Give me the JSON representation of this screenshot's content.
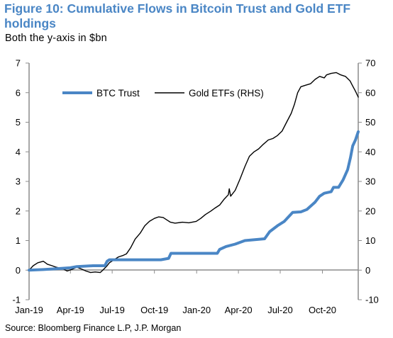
{
  "title": "Figure 10: Cumulative Flows in Bitcoin Trust and Gold ETF holdings",
  "subtitle": "Both the y-axis in $bn",
  "source": "Source: Bloomberg Finance L.P, J.P. Morgan",
  "chart_data": {
    "type": "line",
    "title": "Figure 10: Cumulative Flows in Bitcoin Trust and Gold ETF holdings",
    "subtitle": "Both the y-axis in $bn",
    "x_ticks": [
      "Jan-19",
      "Apr-19",
      "Jul-19",
      "Oct-19",
      "Jan-20",
      "Apr-20",
      "Jul-20",
      "Oct-20"
    ],
    "x_range": [
      "2019-01-01",
      "2020-12-18"
    ],
    "y_left": {
      "min": -1,
      "max": 7,
      "ticks": [
        -1,
        0,
        1,
        2,
        3,
        4,
        5,
        6,
        7
      ]
    },
    "y_right": {
      "min": -10,
      "max": 70,
      "ticks": [
        -10,
        0,
        10,
        20,
        30,
        40,
        50,
        60,
        70
      ]
    },
    "legend_position": "top-right",
    "grid": false,
    "series": [
      {
        "name": "BTC Trust",
        "axis": "left",
        "color": "#4A86C5",
        "points": [
          [
            "2019-01-01",
            0.0
          ],
          [
            "2019-02-01",
            0.02
          ],
          [
            "2019-03-01",
            0.05
          ],
          [
            "2019-04-01",
            0.08
          ],
          [
            "2019-04-15",
            0.12
          ],
          [
            "2019-05-20",
            0.15
          ],
          [
            "2019-06-15",
            0.15
          ],
          [
            "2019-06-20",
            0.3
          ],
          [
            "2019-06-25",
            0.35
          ],
          [
            "2019-07-20",
            0.35
          ],
          [
            "2019-08-15",
            0.35
          ],
          [
            "2019-09-15",
            0.35
          ],
          [
            "2019-10-15",
            0.35
          ],
          [
            "2019-11-01",
            0.4
          ],
          [
            "2019-11-06",
            0.57
          ],
          [
            "2019-12-15",
            0.57
          ],
          [
            "2020-01-15",
            0.57
          ],
          [
            "2020-02-15",
            0.57
          ],
          [
            "2020-02-20",
            0.7
          ],
          [
            "2020-03-05",
            0.8
          ],
          [
            "2020-03-25",
            0.88
          ],
          [
            "2020-04-15",
            1.0
          ],
          [
            "2020-05-15",
            1.04
          ],
          [
            "2020-05-28",
            1.06
          ],
          [
            "2020-06-08",
            1.3
          ],
          [
            "2020-06-25",
            1.5
          ],
          [
            "2020-07-10",
            1.65
          ],
          [
            "2020-07-22",
            1.85
          ],
          [
            "2020-07-28",
            1.95
          ],
          [
            "2020-08-15",
            1.97
          ],
          [
            "2020-08-28",
            2.05
          ],
          [
            "2020-09-15",
            2.3
          ],
          [
            "2020-09-25",
            2.5
          ],
          [
            "2020-10-05",
            2.6
          ],
          [
            "2020-10-20",
            2.65
          ],
          [
            "2020-10-25",
            2.8
          ],
          [
            "2020-11-05",
            2.8
          ],
          [
            "2020-11-15",
            3.05
          ],
          [
            "2020-11-25",
            3.4
          ],
          [
            "2020-12-01",
            3.8
          ],
          [
            "2020-12-06",
            4.2
          ],
          [
            "2020-12-12",
            4.4
          ],
          [
            "2020-12-18",
            4.68
          ]
        ]
      },
      {
        "name": "Gold ETFs (RHS)",
        "axis": "right",
        "color": "#000000",
        "points": [
          [
            "2019-01-01",
            0.0
          ],
          [
            "2019-01-10",
            1.5
          ],
          [
            "2019-01-20",
            2.5
          ],
          [
            "2019-02-01",
            3.0
          ],
          [
            "2019-02-10",
            2.0
          ],
          [
            "2019-02-20",
            1.5
          ],
          [
            "2019-03-01",
            1.0
          ],
          [
            "2019-03-15",
            0.5
          ],
          [
            "2019-03-25",
            -0.3
          ],
          [
            "2019-04-05",
            0.3
          ],
          [
            "2019-04-15",
            1.0
          ],
          [
            "2019-04-25",
            0.4
          ],
          [
            "2019-05-05",
            -0.3
          ],
          [
            "2019-05-15",
            -0.8
          ],
          [
            "2019-05-25",
            -0.6
          ],
          [
            "2019-06-05",
            -0.8
          ],
          [
            "2019-06-12",
            0.2
          ],
          [
            "2019-06-20",
            1.5
          ],
          [
            "2019-06-25",
            2.5
          ],
          [
            "2019-07-05",
            3.5
          ],
          [
            "2019-07-15",
            4.5
          ],
          [
            "2019-07-25",
            5.0
          ],
          [
            "2019-08-01",
            5.5
          ],
          [
            "2019-08-10",
            7.5
          ],
          [
            "2019-08-20",
            10.5
          ],
          [
            "2019-08-31",
            12.5
          ],
          [
            "2019-09-10",
            15.0
          ],
          [
            "2019-09-20",
            16.5
          ],
          [
            "2019-10-01",
            17.5
          ],
          [
            "2019-10-10",
            18.0
          ],
          [
            "2019-10-20",
            17.8
          ],
          [
            "2019-10-28",
            17.0
          ],
          [
            "2019-11-05",
            16.2
          ],
          [
            "2019-11-15",
            15.9
          ],
          [
            "2019-12-01",
            16.2
          ],
          [
            "2019-12-15",
            16.0
          ],
          [
            "2019-12-31",
            16.5
          ],
          [
            "2020-01-10",
            17.5
          ],
          [
            "2020-01-20",
            18.8
          ],
          [
            "2020-02-01",
            20.0
          ],
          [
            "2020-02-10",
            21.0
          ],
          [
            "2020-02-20",
            22.0
          ],
          [
            "2020-03-01",
            24.0
          ],
          [
            "2020-03-10",
            25.5
          ],
          [
            "2020-03-12",
            27.5
          ],
          [
            "2020-03-15",
            25.0
          ],
          [
            "2020-03-25",
            27.0
          ],
          [
            "2020-04-05",
            31.0
          ],
          [
            "2020-04-15",
            35.0
          ],
          [
            "2020-04-25",
            38.5
          ],
          [
            "2020-05-05",
            40.0
          ],
          [
            "2020-05-15",
            41.0
          ],
          [
            "2020-05-25",
            42.5
          ],
          [
            "2020-06-05",
            44.0
          ],
          [
            "2020-06-15",
            44.5
          ],
          [
            "2020-06-25",
            45.5
          ],
          [
            "2020-07-05",
            47.0
          ],
          [
            "2020-07-15",
            50.0
          ],
          [
            "2020-07-25",
            53.0
          ],
          [
            "2020-08-01",
            56.0
          ],
          [
            "2020-08-08",
            60.0
          ],
          [
            "2020-08-15",
            62.0
          ],
          [
            "2020-08-25",
            62.5
          ],
          [
            "2020-09-05",
            63.0
          ],
          [
            "2020-09-15",
            64.5
          ],
          [
            "2020-09-25",
            65.5
          ],
          [
            "2020-10-05",
            65.0
          ],
          [
            "2020-10-10",
            66.0
          ],
          [
            "2020-10-20",
            66.5
          ],
          [
            "2020-10-31",
            66.8
          ],
          [
            "2020-11-10",
            66.0
          ],
          [
            "2020-11-20",
            65.5
          ],
          [
            "2020-11-30",
            64.0
          ],
          [
            "2020-12-05",
            62.5
          ],
          [
            "2020-12-12",
            60.5
          ],
          [
            "2020-12-18",
            58.5
          ]
        ]
      }
    ]
  }
}
